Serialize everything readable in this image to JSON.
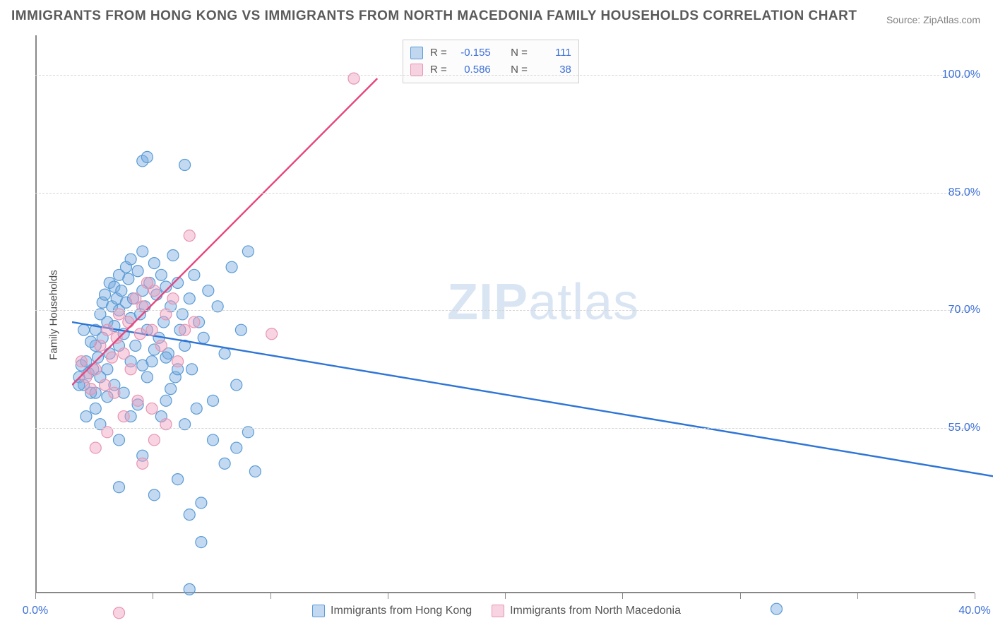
{
  "title": "IMMIGRANTS FROM HONG KONG VS IMMIGRANTS FROM NORTH MACEDONIA FAMILY HOUSEHOLDS CORRELATION CHART",
  "source": "Source: ZipAtlas.com",
  "ylabel": "Family Households",
  "watermark_bold": "ZIP",
  "watermark_light": "atlas",
  "chart": {
    "type": "scatter-with-regression",
    "xlim": [
      0,
      40
    ],
    "ylim": [
      34,
      105
    ],
    "ytick_labels": [
      "55.0%",
      "70.0%",
      "85.0%",
      "100.0%"
    ],
    "ytick_values": [
      55,
      70,
      85,
      100
    ],
    "xtick_values": [
      0,
      5,
      10,
      15,
      20,
      25,
      30,
      35,
      40
    ],
    "xtick_labels_shown": {
      "0": "0.0%",
      "40": "40.0%"
    },
    "grid_color": "#d5d5d5",
    "axis_color": "#888888",
    "background_color": "#ffffff",
    "tick_label_color": "#3b6fd6",
    "marker_radius": 8,
    "marker_stroke_width": 1.2,
    "regression_line_width": 2.4,
    "series": [
      {
        "name": "Immigrants from Hong Kong",
        "fill_color": "rgba(120,170,225,0.45)",
        "stroke_color": "#5a9bd5",
        "line_color": "#2e75d6",
        "R": "-0.155",
        "N": "111",
        "regression": {
          "y_at_x0": 73.0,
          "y_at_xmax": 53.0
        },
        "points": [
          [
            0.3,
            66.0
          ],
          [
            0.4,
            67.5
          ],
          [
            0.5,
            65.0
          ],
          [
            0.6,
            68.0
          ],
          [
            0.7,
            66.5
          ],
          [
            0.8,
            64.0
          ],
          [
            0.9,
            67.0
          ],
          [
            1.0,
            70.0
          ],
          [
            1.0,
            72.0
          ],
          [
            1.1,
            68.5
          ],
          [
            1.2,
            74.0
          ],
          [
            1.3,
            75.5
          ],
          [
            1.3,
            71.0
          ],
          [
            1.4,
            76.5
          ],
          [
            1.5,
            73.0
          ],
          [
            1.6,
            78.0
          ],
          [
            1.6,
            69.0
          ],
          [
            1.7,
            75.0
          ],
          [
            1.8,
            77.5
          ],
          [
            1.8,
            72.5
          ],
          [
            1.9,
            76.0
          ],
          [
            2.0,
            74.5
          ],
          [
            2.0,
            79.0
          ],
          [
            2.1,
            77.0
          ],
          [
            2.2,
            71.5
          ],
          [
            2.3,
            80.0
          ],
          [
            2.3,
            75.5
          ],
          [
            2.4,
            78.5
          ],
          [
            2.5,
            73.5
          ],
          [
            2.5,
            81.0
          ],
          [
            2.6,
            76.0
          ],
          [
            2.7,
            70.0
          ],
          [
            2.8,
            79.5
          ],
          [
            2.9,
            74.0
          ],
          [
            3.0,
            77.0
          ],
          [
            3.0,
            82.0
          ],
          [
            3.1,
            75.0
          ],
          [
            3.2,
            72.0
          ],
          [
            3.3,
            78.0
          ],
          [
            3.4,
            68.0
          ],
          [
            3.5,
            80.5
          ],
          [
            3.6,
            76.5
          ],
          [
            3.7,
            71.0
          ],
          [
            3.8,
            79.0
          ],
          [
            3.9,
            73.0
          ],
          [
            4.0,
            77.5
          ],
          [
            4.1,
            69.0
          ],
          [
            4.2,
            75.0
          ],
          [
            4.3,
            81.5
          ],
          [
            4.4,
            66.0
          ],
          [
            4.5,
            78.0
          ],
          [
            4.6,
            72.0
          ],
          [
            4.7,
            74.0
          ],
          [
            4.8,
            70.0
          ],
          [
            5.0,
            76.0
          ],
          [
            5.1,
            67.0
          ],
          [
            5.2,
            79.0
          ],
          [
            5.4,
            73.0
          ],
          [
            5.5,
            45.0
          ],
          [
            5.6,
            71.0
          ],
          [
            5.8,
            77.0
          ],
          [
            6.0,
            63.0
          ],
          [
            6.2,
            75.0
          ],
          [
            6.5,
            69.0
          ],
          [
            6.8,
            80.0
          ],
          [
            7.0,
            65.0
          ],
          [
            7.2,
            72.0
          ],
          [
            7.5,
            59.0
          ],
          [
            3.0,
            93.5
          ],
          [
            3.2,
            94.0
          ],
          [
            4.8,
            93.0
          ],
          [
            7.5,
            82.0
          ],
          [
            1.0,
            62.0
          ],
          [
            1.2,
            60.0
          ],
          [
            2.0,
            58.0
          ],
          [
            2.5,
            61.0
          ],
          [
            3.0,
            56.0
          ],
          [
            4.0,
            63.0
          ],
          [
            5.0,
            48.5
          ],
          [
            2.0,
            52.0
          ],
          [
            3.5,
            51.0
          ],
          [
            4.5,
            53.0
          ],
          [
            5.5,
            50.0
          ],
          [
            5.0,
            39.0
          ],
          [
            1.5,
            63.5
          ],
          [
            1.8,
            65.0
          ],
          [
            2.2,
            64.0
          ],
          [
            2.8,
            62.5
          ],
          [
            3.2,
            66.0
          ],
          [
            3.8,
            61.0
          ],
          [
            4.2,
            64.5
          ],
          [
            4.8,
            60.0
          ],
          [
            5.3,
            62.0
          ],
          [
            6.0,
            58.0
          ],
          [
            6.5,
            55.0
          ],
          [
            7.0,
            57.0
          ],
          [
            7.8,
            54.0
          ],
          [
            0.5,
            72.0
          ],
          [
            0.8,
            70.5
          ],
          [
            1.0,
            64.0
          ],
          [
            1.5,
            67.0
          ],
          [
            1.2,
            66.0
          ],
          [
            0.3,
            65.0
          ],
          [
            0.6,
            61.0
          ],
          [
            2.0,
            70.0
          ],
          [
            2.5,
            68.0
          ],
          [
            3.0,
            67.5
          ],
          [
            3.5,
            69.5
          ],
          [
            4.0,
            68.5
          ],
          [
            4.5,
            67.0
          ],
          [
            30.0,
            36.5
          ]
        ]
      },
      {
        "name": "Immigrants from North Macedonia",
        "fill_color": "rgba(240,160,190,0.45)",
        "stroke_color": "#e695b2",
        "line_color": "#e6457d",
        "R": "0.586",
        "N": "38",
        "regression": {
          "y_at_x0": 65.0,
          "y_at_xmax_truncated": {
            "x": 13.0,
            "y": 104.0
          }
        },
        "points": [
          [
            0.4,
            68.0
          ],
          [
            0.6,
            66.0
          ],
          [
            0.8,
            64.5
          ],
          [
            1.0,
            67.0
          ],
          [
            1.2,
            70.0
          ],
          [
            1.4,
            65.0
          ],
          [
            1.5,
            72.0
          ],
          [
            1.7,
            68.5
          ],
          [
            1.9,
            71.0
          ],
          [
            2.0,
            74.0
          ],
          [
            2.2,
            69.0
          ],
          [
            2.4,
            73.0
          ],
          [
            2.5,
            67.0
          ],
          [
            2.7,
            76.0
          ],
          [
            2.9,
            71.5
          ],
          [
            3.0,
            75.0
          ],
          [
            3.2,
            78.0
          ],
          [
            3.4,
            72.0
          ],
          [
            3.5,
            77.0
          ],
          [
            3.8,
            70.0
          ],
          [
            4.0,
            74.0
          ],
          [
            4.3,
            76.0
          ],
          [
            4.5,
            68.0
          ],
          [
            4.8,
            72.0
          ],
          [
            5.0,
            84.0
          ],
          [
            5.2,
            73.0
          ],
          [
            2.0,
            36.0
          ],
          [
            3.0,
            55.0
          ],
          [
            3.5,
            58.0
          ],
          [
            4.0,
            60.0
          ],
          [
            1.0,
            57.0
          ],
          [
            1.5,
            59.0
          ],
          [
            2.2,
            61.0
          ],
          [
            2.8,
            63.0
          ],
          [
            3.4,
            62.0
          ],
          [
            8.5,
            71.5
          ],
          [
            12.0,
            104.0
          ],
          [
            1.8,
            64.0
          ]
        ]
      }
    ]
  },
  "legend_top": {
    "rows": [
      {
        "swatch_fill": "rgba(120,170,225,0.45)",
        "swatch_stroke": "#5a9bd5",
        "r_label": "R =",
        "r_value": "-0.155",
        "n_label": "N =",
        "n_value": "111"
      },
      {
        "swatch_fill": "rgba(240,160,190,0.45)",
        "swatch_stroke": "#e695b2",
        "r_label": "R =",
        "r_value": "0.586",
        "n_label": "N =",
        "n_value": "38"
      }
    ]
  },
  "legend_bottom": [
    {
      "label": "Immigrants from Hong Kong",
      "fill": "rgba(120,170,225,0.45)",
      "stroke": "#5a9bd5"
    },
    {
      "label": "Immigrants from North Macedonia",
      "fill": "rgba(240,160,190,0.45)",
      "stroke": "#e695b2"
    }
  ]
}
